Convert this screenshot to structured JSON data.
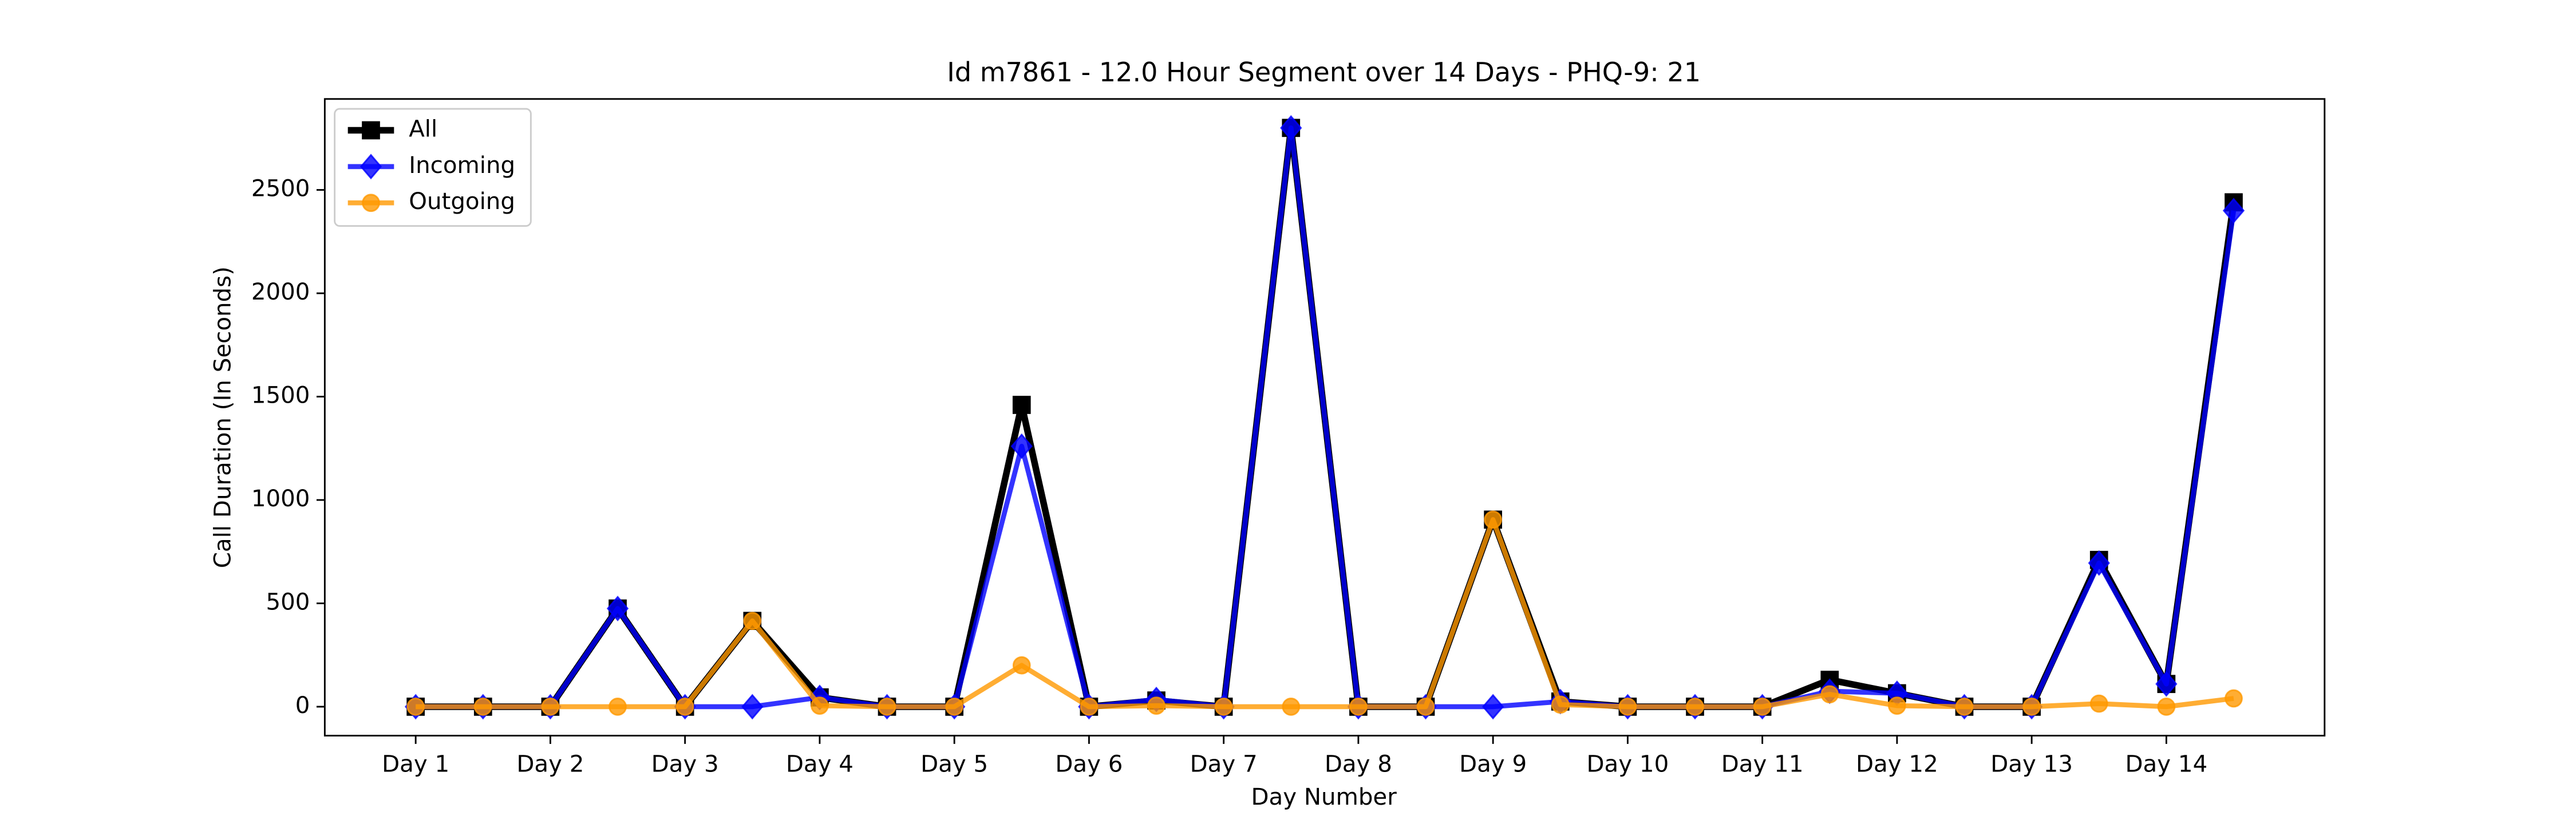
{
  "chart_data": {
    "type": "line",
    "title": "Id m7861 - 12.0 Hour Segment over 14 Days - PHQ-9: 21",
    "x_label": "Day Number",
    "y_label": "Call Duration (In Seconds)",
    "x": [
      1,
      1.5,
      2,
      2.5,
      3,
      3.5,
      4,
      4.5,
      5,
      5.5,
      6,
      6.5,
      7,
      7.5,
      8,
      8.5,
      9,
      9.5,
      10,
      10.5,
      11,
      11.5,
      12,
      12.5,
      13,
      13.5,
      14,
      14.5
    ],
    "series": [
      {
        "name": "All",
        "color": "#000000",
        "marker": "square",
        "opacity": 1,
        "values": [
          0,
          0,
          0,
          475,
          0,
          415,
          45,
          0,
          0,
          1460,
          0,
          30,
          0,
          2800,
          0,
          0,
          905,
          25,
          0,
          0,
          0,
          130,
          65,
          0,
          0,
          710,
          110,
          2440
        ]
      },
      {
        "name": "Incoming",
        "color": "#0000ff",
        "marker": "diamond",
        "opacity": 0.8,
        "values": [
          0,
          0,
          0,
          475,
          0,
          0,
          45,
          0,
          0,
          1260,
          0,
          35,
          0,
          2800,
          0,
          0,
          0,
          25,
          0,
          0,
          0,
          75,
          65,
          0,
          0,
          695,
          110,
          2400
        ]
      },
      {
        "name": "Outgoing",
        "color": "#ff9900",
        "marker": "circle",
        "opacity": 0.8,
        "values": [
          0,
          0,
          0,
          0,
          0,
          415,
          5,
          0,
          0,
          200,
          0,
          5,
          0,
          0,
          0,
          0,
          905,
          10,
          0,
          0,
          0,
          60,
          5,
          0,
          0,
          15,
          0,
          40
        ]
      }
    ],
    "xlim": [
      0.325,
      15.175
    ],
    "xticks": [
      {
        "value": 1,
        "label": "Day 1"
      },
      {
        "value": 2,
        "label": "Day 2"
      },
      {
        "value": 3,
        "label": "Day 3"
      },
      {
        "value": 4,
        "label": "Day 4"
      },
      {
        "value": 5,
        "label": "Day 5"
      },
      {
        "value": 6,
        "label": "Day 6"
      },
      {
        "value": 7,
        "label": "Day 7"
      },
      {
        "value": 8,
        "label": "Day 8"
      },
      {
        "value": 9,
        "label": "Day 9"
      },
      {
        "value": 10,
        "label": "Day 10"
      },
      {
        "value": 11,
        "label": "Day 11"
      },
      {
        "value": 12,
        "label": "Day 12"
      },
      {
        "value": 13,
        "label": "Day 13"
      },
      {
        "value": 14,
        "label": "Day 14"
      }
    ],
    "ylim": [
      -140,
      2940
    ],
    "yticks": [
      0,
      500,
      1000,
      1500,
      2000,
      2500
    ],
    "legend": "upper left",
    "grid": false
  }
}
